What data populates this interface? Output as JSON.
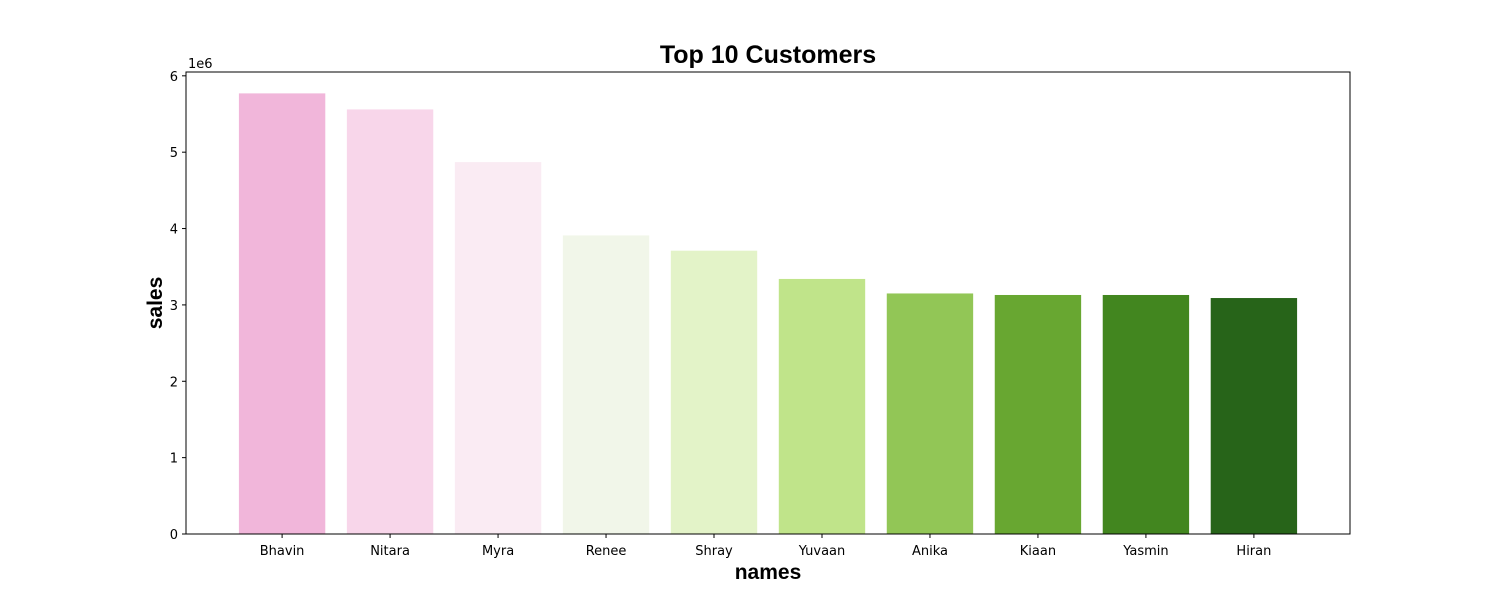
{
  "chart_data": {
    "type": "bar",
    "title": "Top 10 Customers",
    "xlabel": "names",
    "ylabel": "sales",
    "y_offset_label": "1e6",
    "categories": [
      "Bhavin",
      "Nitara",
      "Myra",
      "Renee",
      "Shray",
      "Yuvaan",
      "Anika",
      "Kiaan",
      "Yasmin",
      "Hiran"
    ],
    "values": [
      5770000,
      5560000,
      4870000,
      3910000,
      3710000,
      3340000,
      3150000,
      3130000,
      3130000,
      3090000
    ],
    "colors": [
      "#f1b6da",
      "#f8d6ea",
      "#faebf3",
      "#f1f6e9",
      "#e3f3c8",
      "#c0e48a",
      "#92c656",
      "#68a731",
      "#42861f",
      "#276419"
    ],
    "y_ticks": [
      0,
      1,
      2,
      3,
      4,
      5,
      6
    ],
    "ylim": [
      0,
      6050000
    ],
    "grid": false
  }
}
